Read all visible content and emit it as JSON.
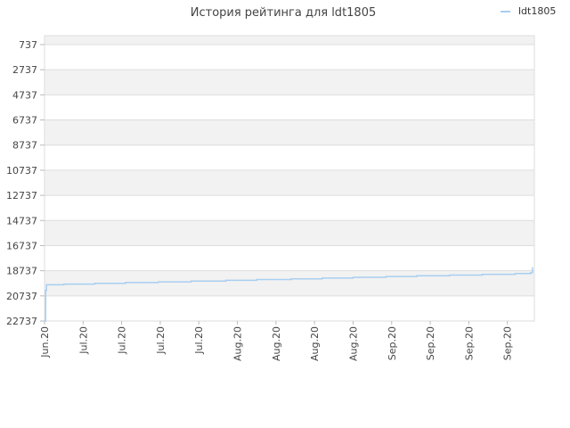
{
  "chart_data": {
    "type": "line",
    "title": "История рейтинга для ldt1805",
    "xlabel": "",
    "ylabel": "",
    "y_inverted": true,
    "ylim": [
      737,
      22737
    ],
    "yticks": [
      737,
      2737,
      4737,
      6737,
      8737,
      10737,
      12737,
      14737,
      16737,
      18737,
      20737,
      22737
    ],
    "x_tick_labels": [
      "Jun.20",
      "Jul.20",
      "Jul.20",
      "Jul.20",
      "Jul.20",
      "Aug.20",
      "Aug.20",
      "Aug.20",
      "Aug.20",
      "Sep.20",
      "Sep.20",
      "Sep.20",
      "Sep.20"
    ],
    "x_range": [
      0,
      12.7
    ],
    "grid": true,
    "legend_position": "top-right",
    "colors": {
      "series": "#a8cef0",
      "band": "#f2f2f2",
      "grid": "#dddddd"
    },
    "series": [
      {
        "name": "ldt1805",
        "x": [
          0,
          0.03,
          0.03,
          0.05,
          0.05,
          0.5,
          0.5,
          1.3,
          1.3,
          2.1,
          2.1,
          2.95,
          2.95,
          3.8,
          3.8,
          4.7,
          4.7,
          5.5,
          5.5,
          6.4,
          6.4,
          7.2,
          7.2,
          8.0,
          8.0,
          8.85,
          8.85,
          9.65,
          9.65,
          10.5,
          10.5,
          11.35,
          11.35,
          12.2,
          12.2,
          12.6,
          12.6,
          12.65,
          12.65
        ],
        "values": [
          22737,
          22737,
          20300,
          20300,
          19850,
          19850,
          19800,
          19800,
          19740,
          19740,
          19680,
          19680,
          19620,
          19620,
          19560,
          19560,
          19500,
          19500,
          19440,
          19440,
          19380,
          19380,
          19320,
          19320,
          19260,
          19260,
          19200,
          19200,
          19140,
          19140,
          19080,
          19080,
          19020,
          19020,
          18960,
          18960,
          18900,
          18900,
          18450
        ]
      }
    ]
  }
}
